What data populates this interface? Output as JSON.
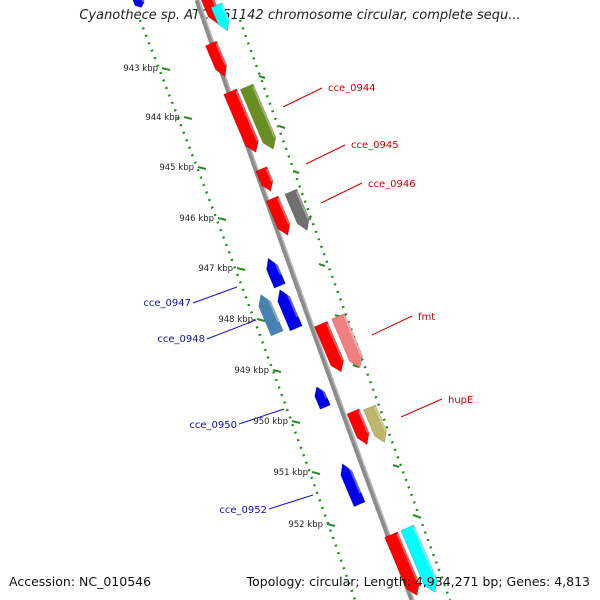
{
  "map": {
    "title": "Cyanothece sp. ATCC 51142 chromosome circular, complete sequ...",
    "accession": "Accession: NC_010546",
    "summary": "Topology: circular; Length: 4,934,271 bp; Genes: 4,813"
  },
  "scale_ticks": [
    "943 kbp",
    "944 kbp",
    "945 kbp",
    "946 kbp",
    "947 kbp",
    "948 kbp",
    "949 kbp",
    "950 kbp",
    "951 kbp",
    "952 kbp"
  ],
  "gene_labels": {
    "forward": [
      "cce_0944",
      "cce_0945",
      "cce_0946",
      "fmt",
      "hupE"
    ],
    "reverse": [
      "cce_0947",
      "cce_0948",
      "cce_0950",
      "cce_0952"
    ]
  },
  "colors": {
    "backbone": "#8c8c8c",
    "gc_skew_dots": "#2a8a2a",
    "cds": "#ff0000",
    "blue_cds": "#0000ee",
    "olive": "#6b8e23",
    "gray": "#707070",
    "salmon": "#f08080",
    "khaki": "#bdb76b",
    "steel": "#4682b4",
    "cyan": "#00ffff"
  }
}
